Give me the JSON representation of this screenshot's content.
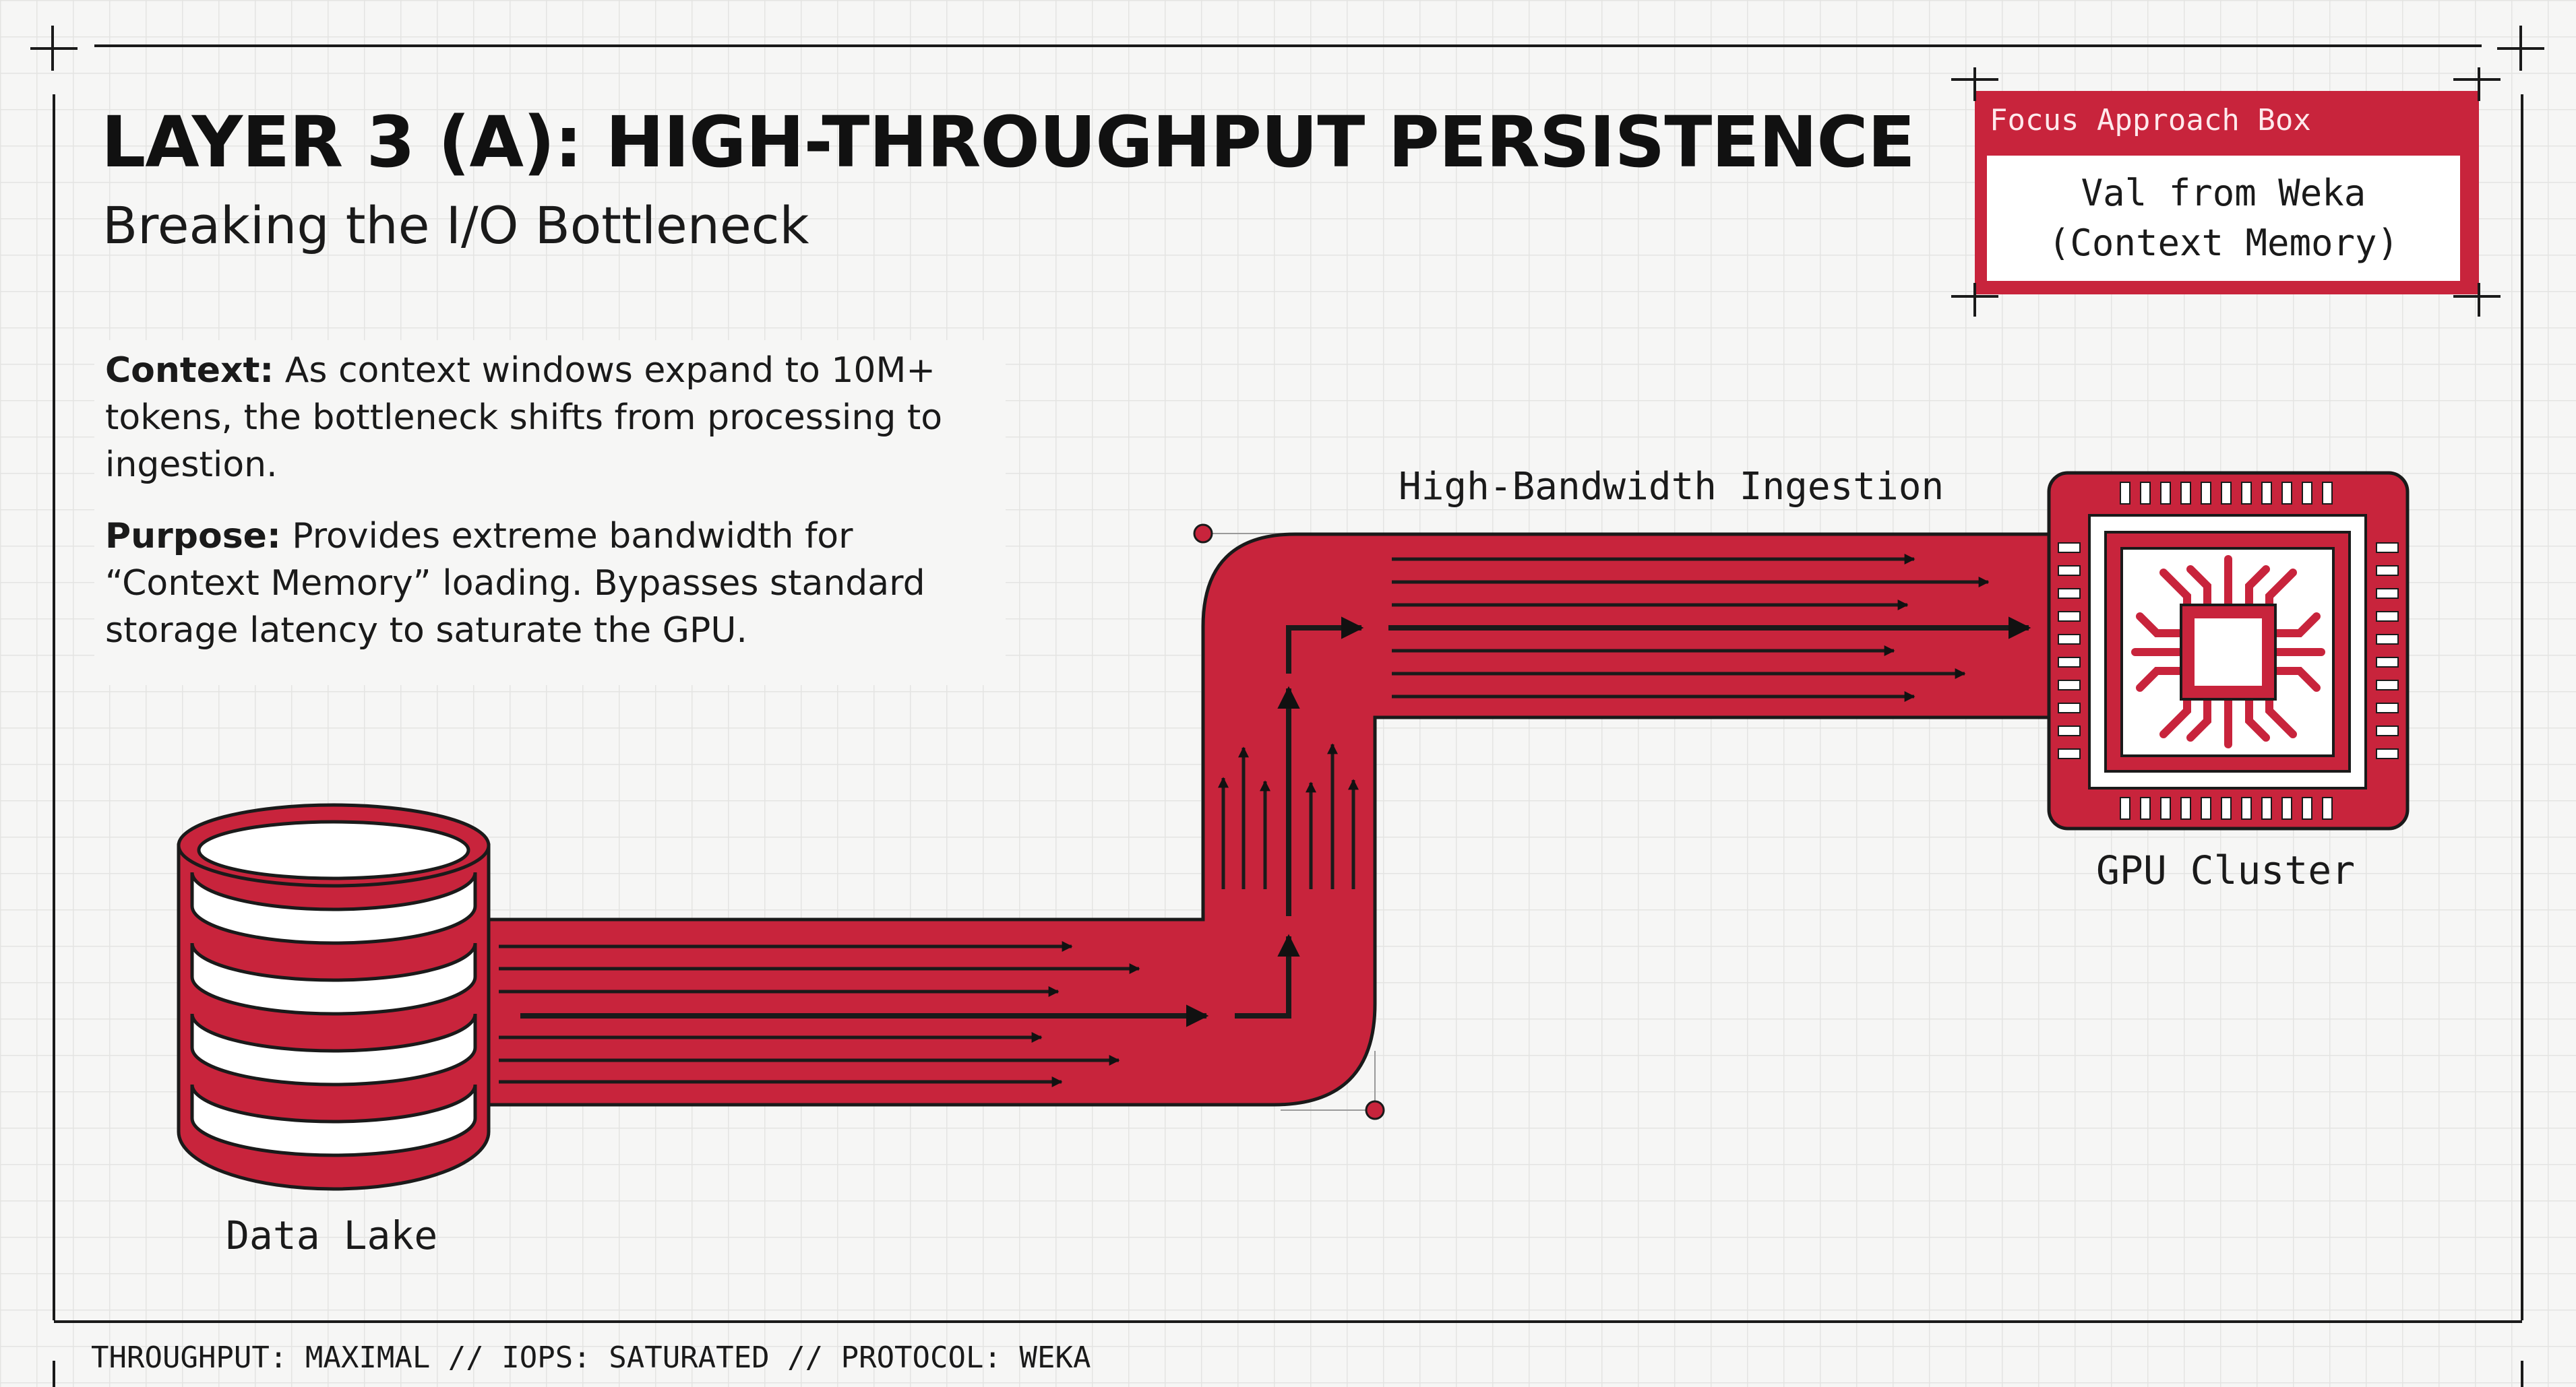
{
  "header": {
    "title": "LAYER 3 (A): HIGH-THROUGHPUT PERSISTENCE",
    "subtitle": "Breaking the I/O Bottleneck"
  },
  "context_panel": {
    "context_label": "Context:",
    "context_text": " As context windows expand to 10M+ tokens, the bottleneck shifts from processing to ingestion.",
    "purpose_label": "Purpose:",
    "purpose_text": " Provides extreme bandwidth for “Context Memory” loading. Bypasses standard storage latency to saturate the GPU."
  },
  "focus_box": {
    "label": "Focus Approach Box",
    "line1": "Val from Weka",
    "line2": "(Context Memory)"
  },
  "diagram": {
    "source_label": "Data Lake",
    "pipe_label": "High-Bandwidth Ingestion",
    "target_label": "GPU Cluster",
    "source_icon": "database-icon",
    "target_icon": "gpu-chip-icon"
  },
  "footer": {
    "status": "THROUGHPUT: MAXIMAL // IOPS: SATURATED // PROTOCOL: WEKA"
  },
  "colors": {
    "accent": "#c8243c",
    "ink": "#111111",
    "background": "#f6f6f5"
  }
}
